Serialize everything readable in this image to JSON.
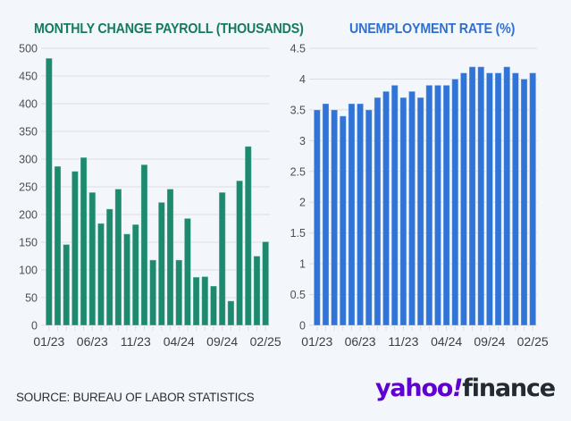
{
  "colors": {
    "background": "#f3f7fb",
    "payroll_bar": "#1d8a70",
    "payroll_title": "#157a5f",
    "unemployment_bar": "#2f74d6",
    "unemployment_title": "#2f6fd0",
    "grid": "#dcdde0",
    "brand_purple": "#6001d2"
  },
  "footer": {
    "source": "SOURCE: BUREAU OF LABOR STATISTICS",
    "logo_yahoo": "yahoo",
    "logo_bang": "!",
    "logo_finance": "finance"
  },
  "chart_data": [
    {
      "type": "bar",
      "title": "MONTHLY CHANGE PAYROLL (THOUSANDS)",
      "xlabel": "",
      "ylabel": "",
      "ylim": [
        0,
        500
      ],
      "yticks": [
        0,
        50,
        100,
        150,
        200,
        250,
        300,
        350,
        400,
        450,
        500
      ],
      "ytick_labels": [
        "0",
        "50",
        "100",
        "150",
        "200",
        "250",
        "300",
        "350",
        "400",
        "450",
        "500"
      ],
      "grid": true,
      "categories": [
        "01/23",
        "02/23",
        "03/23",
        "04/23",
        "05/23",
        "06/23",
        "07/23",
        "08/23",
        "09/23",
        "10/23",
        "11/23",
        "12/23",
        "01/24",
        "02/24",
        "03/24",
        "04/24",
        "05/24",
        "06/24",
        "07/24",
        "08/24",
        "09/24",
        "10/24",
        "11/24",
        "12/24",
        "01/25",
        "02/25"
      ],
      "xtick_labels": [
        "01/23",
        "06/23",
        "11/23",
        "04/24",
        "09/24",
        "02/25"
      ],
      "values": [
        482,
        287,
        146,
        278,
        303,
        240,
        184,
        210,
        246,
        165,
        182,
        290,
        118,
        222,
        246,
        118,
        193,
        87,
        88,
        71,
        240,
        44,
        261,
        323,
        125,
        151
      ]
    },
    {
      "type": "bar",
      "title": "UNEMPLOYMENT RATE (%)",
      "xlabel": "",
      "ylabel": "",
      "ylim": [
        0,
        4.5
      ],
      "yticks": [
        0,
        0.5,
        1,
        1.5,
        2,
        2.5,
        3,
        3.5,
        4,
        4.5
      ],
      "ytick_labels": [
        "0",
        "0.5",
        "1",
        "1.5",
        "2",
        "2.5",
        "3",
        "3.5",
        "4",
        "4.5"
      ],
      "grid": true,
      "categories": [
        "01/23",
        "02/23",
        "03/23",
        "04/23",
        "05/23",
        "06/23",
        "07/23",
        "08/23",
        "09/23",
        "10/23",
        "11/23",
        "12/23",
        "01/24",
        "02/24",
        "03/24",
        "04/24",
        "05/24",
        "06/24",
        "07/24",
        "08/24",
        "09/24",
        "10/24",
        "11/24",
        "12/24",
        "01/25",
        "02/25"
      ],
      "xtick_labels": [
        "01/23",
        "06/23",
        "11/23",
        "04/24",
        "09/24",
        "02/25"
      ],
      "values": [
        3.5,
        3.6,
        3.5,
        3.4,
        3.6,
        3.6,
        3.5,
        3.7,
        3.8,
        3.9,
        3.7,
        3.8,
        3.7,
        3.9,
        3.9,
        3.9,
        4.0,
        4.1,
        4.2,
        4.2,
        4.1,
        4.1,
        4.2,
        4.1,
        4.0,
        4.1
      ]
    }
  ]
}
